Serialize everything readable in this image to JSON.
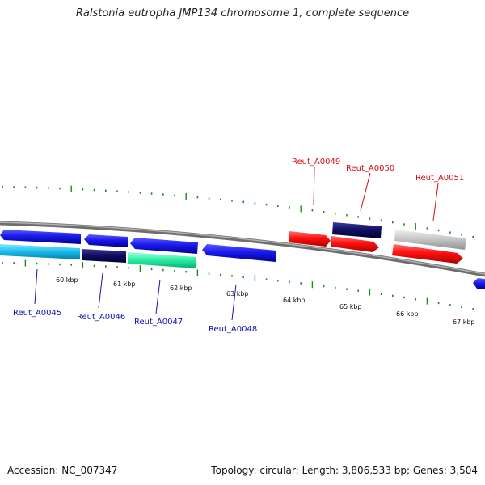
{
  "title": "Ralstonia eutropha JMP134 chromosome 1, complete sequence",
  "footer": {
    "accession": "Accession: NC_007347",
    "stats": "Topology: circular; Length: 3,806,533 bp; Genes: 3,504"
  },
  "colors": {
    "backbone": "#808080",
    "tick": "#1a8a1a",
    "label_blue": "#1010b0",
    "label_red": "#d01010"
  },
  "kbp_labels": [
    "60 kbp",
    "61 kbp",
    "62 kbp",
    "63 kbp",
    "64 kbp",
    "65 kbp",
    "66 kbp",
    "67 kbp"
  ],
  "gene_labels": [
    {
      "text": "Reut_A0045",
      "strand": "bottom"
    },
    {
      "text": "Reut_A0046",
      "strand": "bottom"
    },
    {
      "text": "Reut_A0047",
      "strand": "bottom"
    },
    {
      "text": "Reut_A0048",
      "strand": "bottom"
    },
    {
      "text": "Reut_A0049",
      "strand": "top"
    },
    {
      "text": "Reut_A0050",
      "strand": "top"
    },
    {
      "text": "Reut_A0051",
      "strand": "top"
    }
  ]
}
